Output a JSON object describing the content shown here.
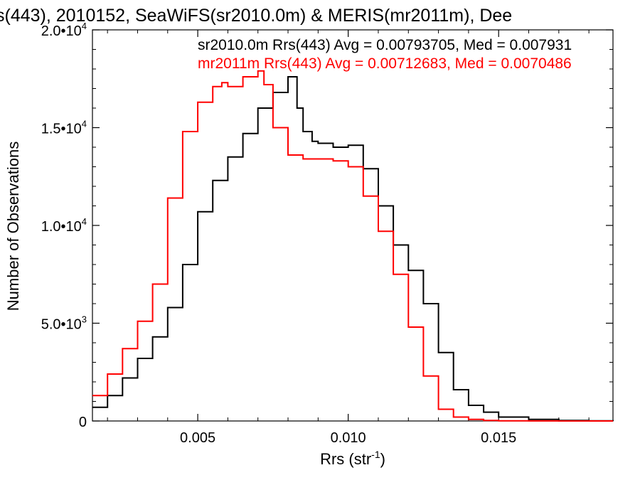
{
  "chart_data": {
    "type": "line",
    "title": "s(443), 2010152, SeaWiFS(sr2010.0m) & MERIS(mr2011m), Dee",
    "xlabel": "Rrs (str",
    "xlabel_sup": "-1",
    "xlabel_suffix": ")",
    "ylabel": "Number of Observations",
    "xlim": [
      0.0015,
      0.0188
    ],
    "ylim": [
      0,
      20000
    ],
    "x_ticks": [
      {
        "value": 0.005,
        "label": "0.005"
      },
      {
        "value": 0.01,
        "label": "0.010"
      },
      {
        "value": 0.015,
        "label": "0.015"
      }
    ],
    "y_ticks": [
      {
        "value": 0,
        "mant": "0",
        "exp": ""
      },
      {
        "value": 5000,
        "mant": "5.0•10",
        "exp": "3"
      },
      {
        "value": 10000,
        "mant": "1.0•10",
        "exp": "4"
      },
      {
        "value": 15000,
        "mant": "1.5•10",
        "exp": "4"
      },
      {
        "value": 20000,
        "mant": "2.0•10",
        "exp": "4"
      }
    ],
    "grid": false,
    "legend_position": "top-right",
    "series": [
      {
        "name": "sr2010.0m Rrs(443) Avg = 0.00793705, Med = 0.007931",
        "color": "#000000",
        "style": "step",
        "x": [
          0.0015,
          0.002,
          0.0025,
          0.003,
          0.0035,
          0.004,
          0.0045,
          0.005,
          0.0055,
          0.006,
          0.0065,
          0.007,
          0.0075,
          0.008,
          0.0083,
          0.0085,
          0.0088,
          0.009,
          0.0095,
          0.01,
          0.0105,
          0.011,
          0.0115,
          0.012,
          0.0125,
          0.013,
          0.0135,
          0.014,
          0.0145,
          0.015,
          0.016,
          0.017,
          0.018,
          0.0188
        ],
        "y": [
          700,
          1300,
          2200,
          3200,
          4300,
          5800,
          8000,
          10700,
          12300,
          13500,
          14700,
          16000,
          16800,
          17600,
          16000,
          14800,
          14300,
          14200,
          14000,
          14100,
          12900,
          11000,
          9000,
          7700,
          6000,
          3500,
          1600,
          800,
          450,
          200,
          80,
          30,
          10,
          0
        ]
      },
      {
        "name": "mr2011m Rrs(443) Avg = 0.00712683, Med = 0.0070486",
        "color": "#ff0000",
        "style": "step",
        "x": [
          0.0015,
          0.002,
          0.0025,
          0.003,
          0.0035,
          0.004,
          0.0045,
          0.005,
          0.0055,
          0.0058,
          0.006,
          0.0065,
          0.007,
          0.0072,
          0.0075,
          0.008,
          0.0085,
          0.009,
          0.0095,
          0.01,
          0.0105,
          0.011,
          0.0115,
          0.012,
          0.0125,
          0.013,
          0.0135,
          0.014,
          0.0145,
          0.015,
          0.016,
          0.017,
          0.018,
          0.0188
        ],
        "y": [
          1300,
          2400,
          3700,
          5100,
          7000,
          11400,
          14800,
          16300,
          17100,
          17300,
          17100,
          17600,
          17900,
          17200,
          15000,
          13600,
          13400,
          13400,
          13300,
          13000,
          11500,
          9700,
          7500,
          4800,
          2300,
          600,
          200,
          80,
          30,
          10,
          5,
          0,
          0,
          0
        ]
      }
    ]
  }
}
